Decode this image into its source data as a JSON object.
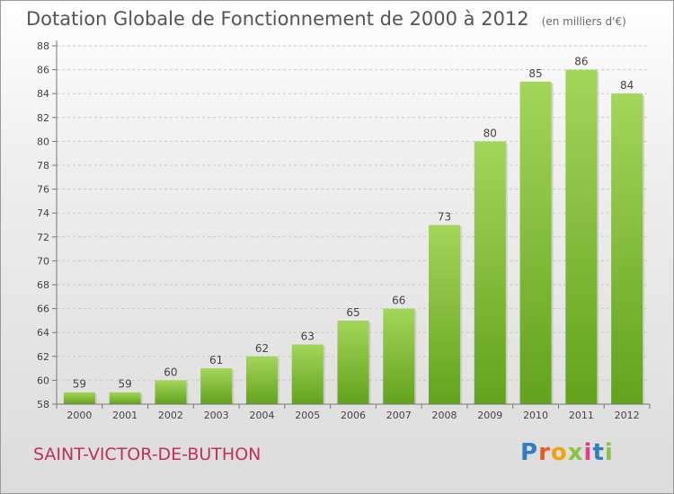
{
  "title": "Dotation Globale de Fonctionnement de 2000 à 2012",
  "subtitle": "(en milliers d'€)",
  "town": "SAINT-VICTOR-DE-BUTHON",
  "brand": {
    "letters": [
      "P",
      "r",
      "o",
      "x",
      "i",
      "t",
      "i"
    ],
    "colors": [
      "#2f7fc1",
      "#e85d1b",
      "#f2a20c",
      "#8bc23f",
      "#e23c8a",
      "#2f7fc1",
      "#8bc23f"
    ]
  },
  "colors": {
    "bar_top": "#a3d65a",
    "bar_bottom": "#62a31c"
  },
  "chart_data": {
    "type": "bar",
    "categories": [
      "2000",
      "2001",
      "2002",
      "2003",
      "2004",
      "2005",
      "2006",
      "2007",
      "2008",
      "2009",
      "2010",
      "2011",
      "2012"
    ],
    "values": [
      59,
      59,
      60,
      61,
      62,
      63,
      65,
      66,
      73,
      80,
      85,
      86,
      84
    ],
    "ylim": [
      58,
      88
    ],
    "yticks": [
      58,
      60,
      62,
      64,
      66,
      68,
      70,
      72,
      74,
      76,
      78,
      80,
      82,
      84,
      86,
      88
    ],
    "grid": true,
    "title": "Dotation Globale de Fonctionnement de 2000 à 2012"
  }
}
